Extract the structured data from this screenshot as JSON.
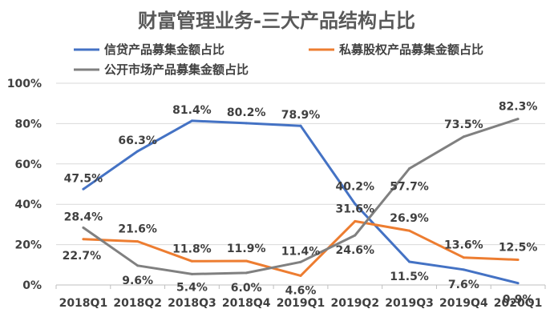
{
  "chart_data": {
    "type": "line",
    "title": "财富管理业务-三大产品结构占比",
    "categories": [
      "2018Q1",
      "2018Q2",
      "2018Q3",
      "2018Q4",
      "2019Q1",
      "2019Q2",
      "2019Q3",
      "2019Q4",
      "2020Q1"
    ],
    "ylim": [
      0,
      100
    ],
    "y_ticks": [
      "0%",
      "20%",
      "40%",
      "60%",
      "80%",
      "100%"
    ],
    "grid": true,
    "legend_position": "top",
    "series": [
      {
        "name": "信贷产品募集金额占比",
        "color": "#4472c4",
        "values": [
          47.5,
          66.3,
          81.4,
          80.2,
          78.9,
          40.2,
          11.5,
          7.6,
          0.9
        ],
        "labels": [
          "47.5%",
          "66.3%",
          "81.4%",
          "80.2%",
          "78.9%",
          "40.2%",
          "11.5%",
          "7.6%",
          "0.9%"
        ]
      },
      {
        "name": "私募股权产品募集金额占比",
        "color": "#ed7d31",
        "values": [
          22.7,
          21.6,
          11.8,
          11.9,
          4.6,
          31.6,
          26.9,
          13.6,
          12.5
        ],
        "labels": [
          "22.7%",
          "21.6%",
          "11.8%",
          "11.9%",
          "4.6%",
          "31.6%",
          "26.9%",
          "13.6%",
          "12.5%"
        ]
      },
      {
        "name": "公开市场产品募集金额占比",
        "color": "#808080",
        "values": [
          28.4,
          9.6,
          5.4,
          6.0,
          11.4,
          24.6,
          57.7,
          73.5,
          82.3
        ],
        "labels": [
          "28.4%",
          "9.6%",
          "5.4%",
          "6.0%",
          "11.4%",
          "24.6%",
          "57.7%",
          "73.5%",
          "82.3%"
        ]
      }
    ]
  }
}
